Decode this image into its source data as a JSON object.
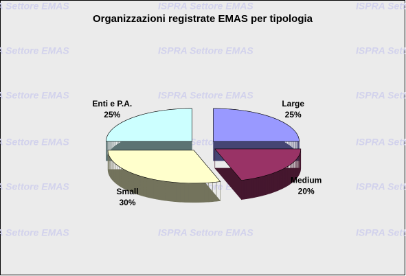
{
  "chart_data": {
    "type": "pie",
    "title": "Organizzazioni registrate EMAS per tipologia",
    "watermark": "ISPRA Settore EMAS",
    "categories": [
      "Large",
      "Medium",
      "Small",
      "Enti e P.A."
    ],
    "values": [
      25,
      20,
      30,
      25
    ],
    "value_labels": [
      "25%",
      "20%",
      "30%",
      "25%"
    ],
    "colors": [
      "#9999ff",
      "#993366",
      "#ffffcc",
      "#ccffff"
    ]
  }
}
